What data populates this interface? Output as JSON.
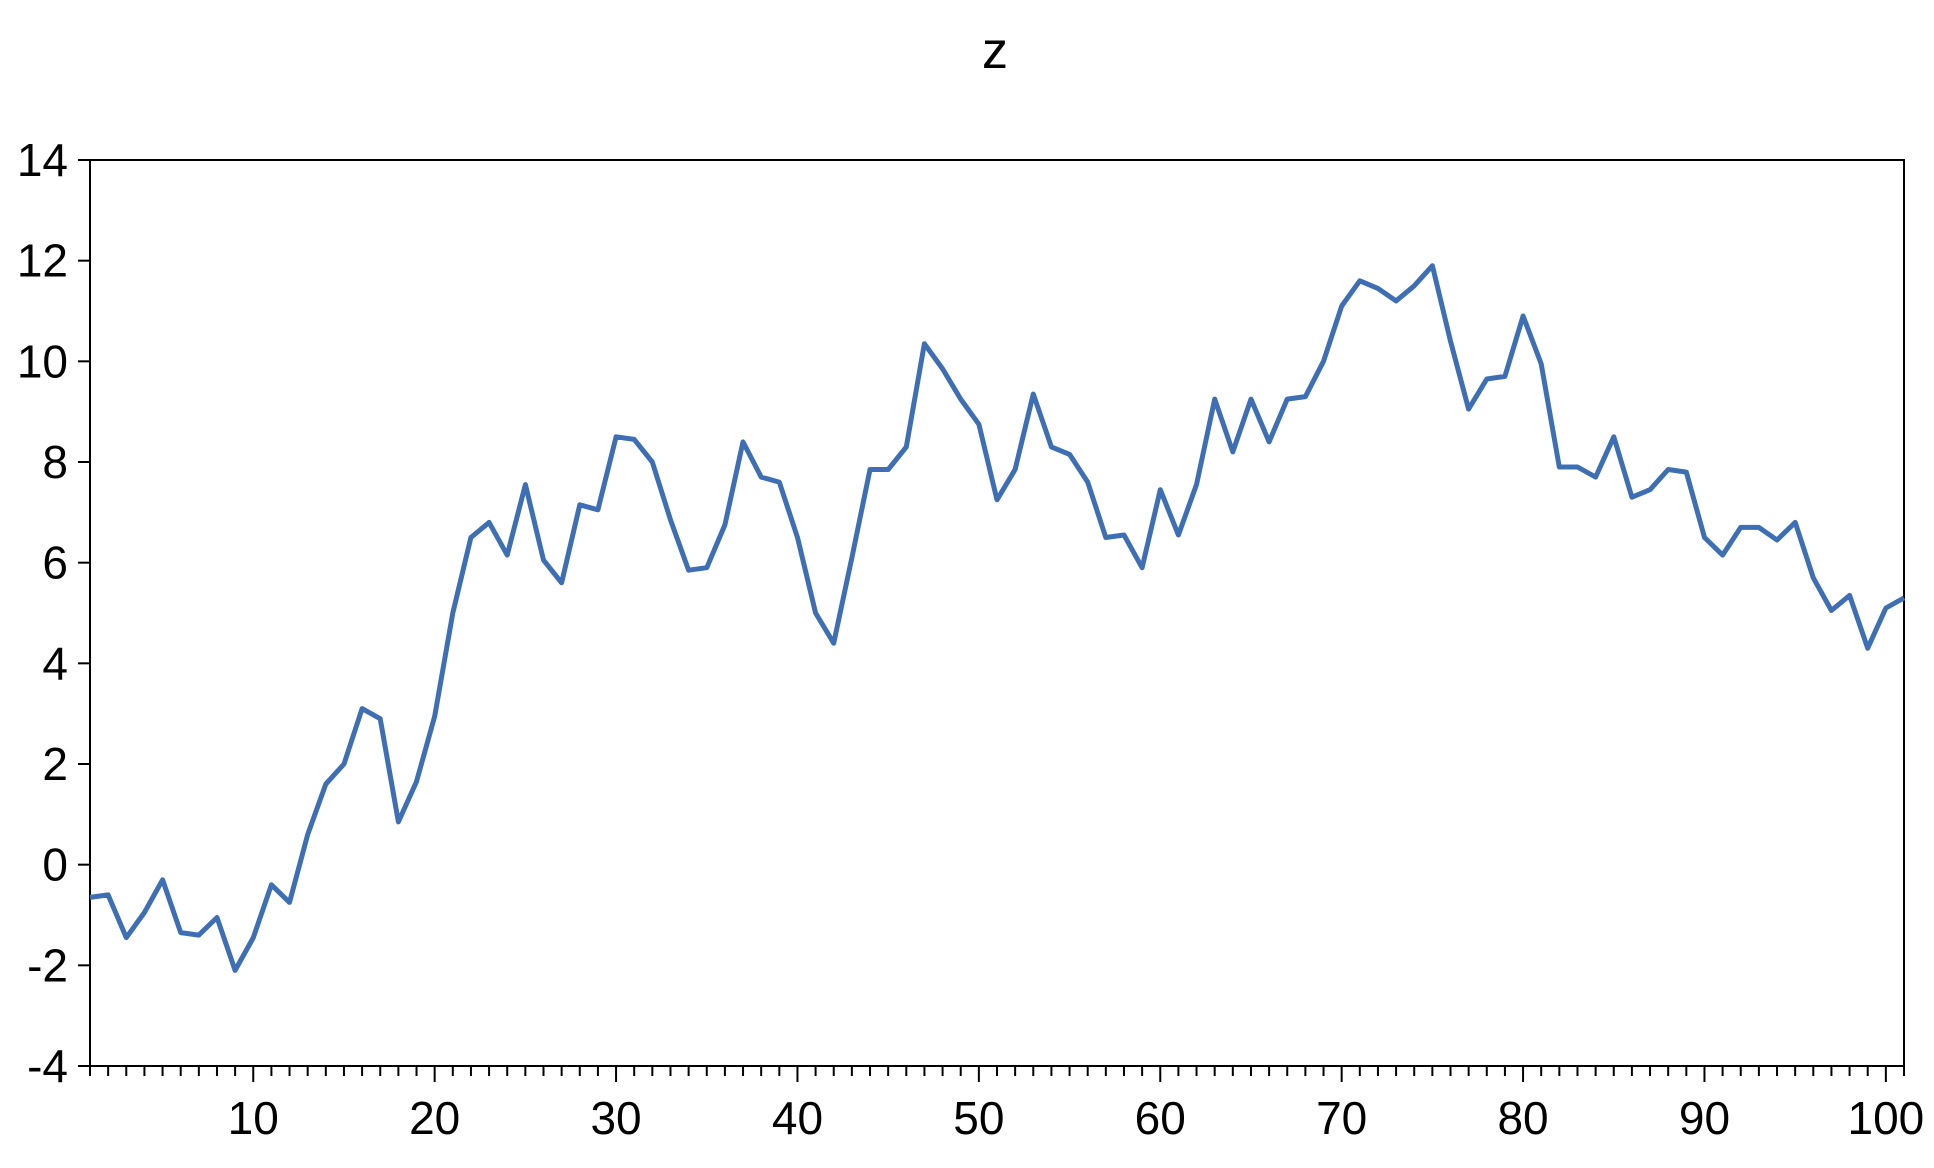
{
  "chart_data": {
    "type": "line",
    "title": "z",
    "xlabel": "",
    "ylabel": "",
    "xlim": [
      1,
      101
    ],
    "ylim": [
      -4,
      14
    ],
    "yticks": [
      -4,
      -2,
      0,
      2,
      4,
      6,
      8,
      10,
      12,
      14
    ],
    "xticks": [
      10,
      20,
      30,
      40,
      50,
      60,
      70,
      80,
      90,
      100
    ],
    "grid": false,
    "line_color": "#3e6fb5",
    "series": [
      {
        "x": [
          1,
          2,
          3,
          4,
          5,
          6,
          7,
          8,
          9,
          10,
          11,
          12,
          13,
          14,
          15,
          16,
          17,
          18,
          19,
          20,
          21,
          22,
          23,
          24,
          25,
          26,
          27,
          28,
          29,
          30,
          31,
          32,
          33,
          34,
          35,
          36,
          37,
          38,
          39,
          40,
          41,
          42,
          43,
          44,
          45,
          46,
          47,
          48,
          49,
          50,
          51,
          52,
          53,
          54,
          55,
          56,
          57,
          58,
          59,
          60,
          61,
          62,
          63,
          64,
          65,
          66,
          67,
          68,
          69,
          70,
          71,
          72,
          73,
          74,
          75,
          76,
          77,
          78,
          79,
          80,
          81,
          82,
          83,
          84,
          85,
          86,
          87,
          88,
          89,
          90,
          91,
          92,
          93,
          94,
          95,
          96,
          97,
          98,
          99,
          100,
          101
        ],
        "values": [
          -0.65,
          -0.6,
          -1.45,
          -0.95,
          -0.3,
          -1.35,
          -1.4,
          -1.05,
          -2.1,
          -1.45,
          -0.4,
          -0.75,
          0.6,
          1.6,
          2.0,
          3.1,
          2.9,
          0.85,
          1.65,
          2.95,
          5.0,
          6.5,
          6.8,
          6.15,
          7.55,
          6.05,
          5.6,
          7.15,
          7.05,
          8.5,
          8.45,
          8.0,
          6.85,
          5.85,
          5.9,
          6.75,
          8.4,
          7.7,
          7.6,
          6.5,
          5.0,
          4.4,
          6.1,
          7.85,
          7.85,
          8.3,
          10.35,
          9.85,
          9.25,
          8.75,
          7.25,
          7.85,
          9.35,
          8.3,
          8.15,
          7.6,
          6.5,
          6.55,
          5.9,
          7.45,
          6.55,
          7.55,
          9.25,
          8.2,
          9.25,
          8.4,
          9.25,
          9.3,
          10.0,
          11.1,
          11.6,
          11.45,
          11.2,
          11.5,
          11.9,
          10.4,
          9.05,
          9.65,
          9.7,
          10.9,
          9.95,
          7.9,
          7.9,
          7.7,
          8.5,
          7.3,
          7.45,
          7.85,
          7.8,
          6.5,
          6.15,
          6.7,
          6.7,
          6.45,
          6.8,
          5.7,
          5.05,
          5.35,
          4.3,
          5.1,
          5.3
        ]
      }
    ]
  }
}
